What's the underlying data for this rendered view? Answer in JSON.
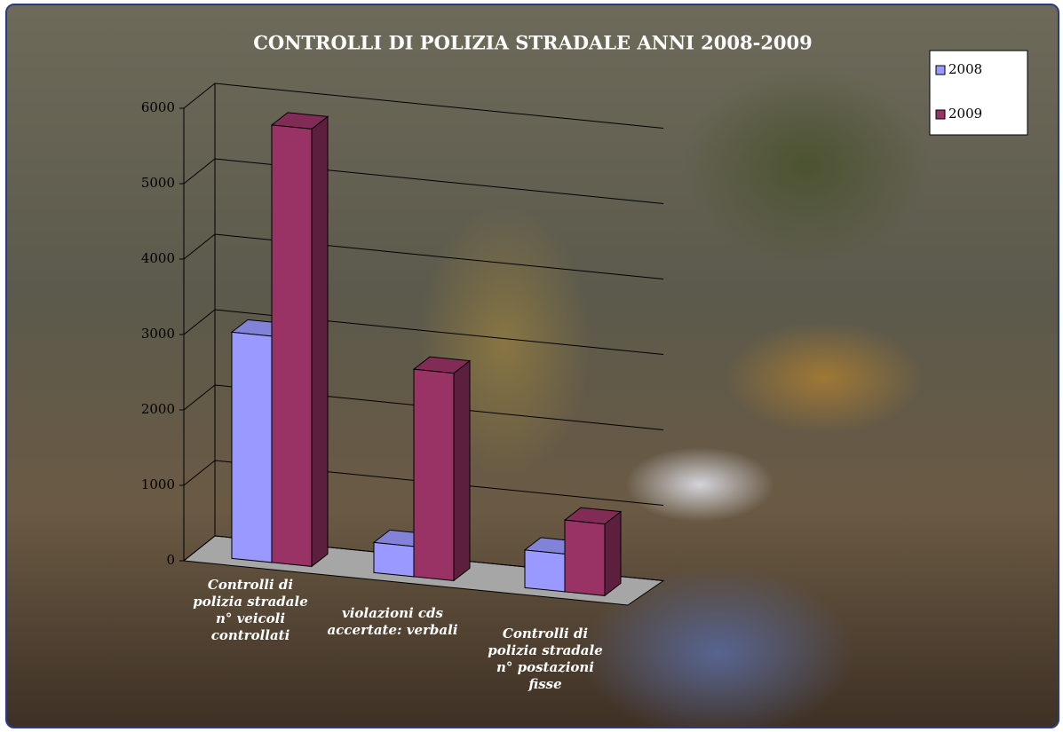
{
  "chart_data": {
    "type": "bar3d",
    "title": "CONTROLLI DI POLIZIA STRADALE ANNI 2008-2009",
    "categories": [
      "Controlli di polizia stradale n° veicoli controllati",
      "violazioni cds accertate: verbali",
      "Controlli di polizia stradale n° postazioni fisse"
    ],
    "series": [
      {
        "name": "2008",
        "color": "#9999ff",
        "values": [
          3000,
          400,
          500
        ]
      },
      {
        "name": "2009",
        "color": "#993366",
        "values": [
          5800,
          2750,
          950
        ]
      }
    ],
    "ylim": [
      0,
      6000
    ],
    "yticks": [
      0,
      1000,
      2000,
      3000,
      4000,
      5000,
      6000
    ],
    "grid": true,
    "legend": "top-right"
  }
}
